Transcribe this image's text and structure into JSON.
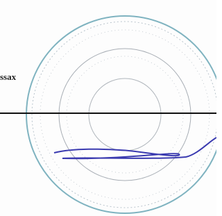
{
  "label": "ssax"
}
